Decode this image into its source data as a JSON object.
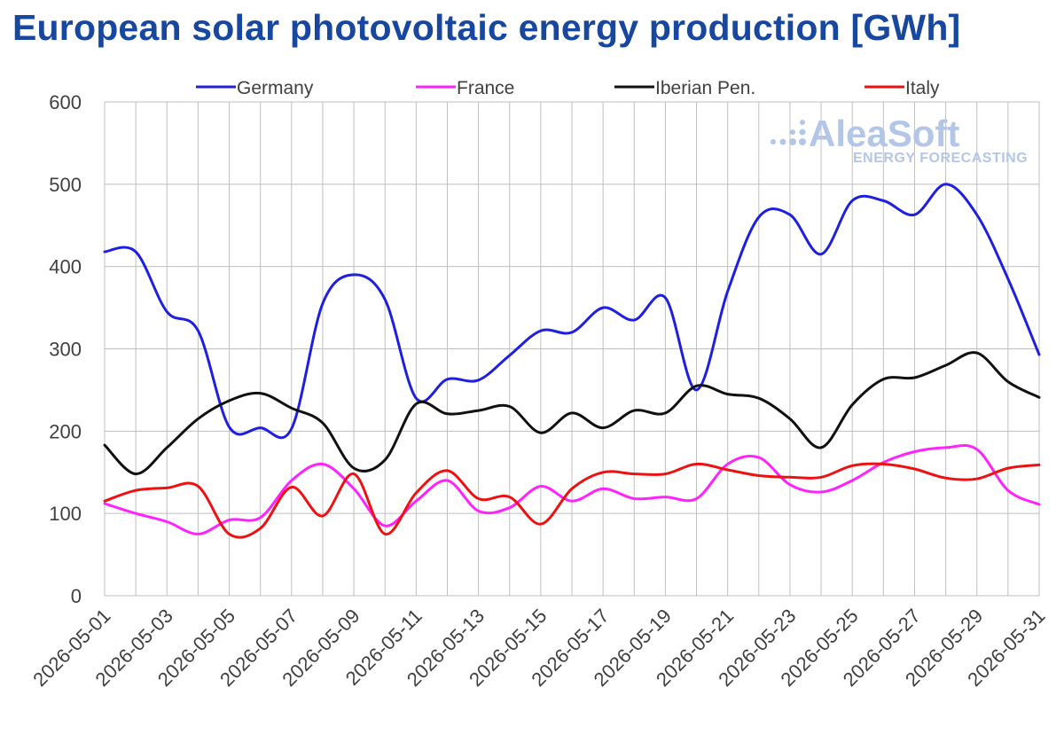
{
  "title": "European solar photovoltaic energy production [GWh]",
  "watermark": {
    "brand": "AleaSoft",
    "tagline": "ENERGY FORECASTING"
  },
  "chart_data": {
    "type": "line",
    "title": "European solar photovoltaic energy production [GWh]",
    "ylim": [
      0,
      600
    ],
    "y_ticks": [
      0,
      100,
      200,
      300,
      400,
      500,
      600
    ],
    "x": [
      "2026-05-01",
      "2026-05-02",
      "2026-05-03",
      "2026-05-04",
      "2026-05-05",
      "2026-05-06",
      "2026-05-07",
      "2026-05-08",
      "2026-05-09",
      "2026-05-10",
      "2026-05-11",
      "2026-05-12",
      "2026-05-13",
      "2026-05-14",
      "2026-05-15",
      "2026-05-16",
      "2026-05-17",
      "2026-05-18",
      "2026-05-19",
      "2026-05-20",
      "2026-05-21",
      "2026-05-22",
      "2026-05-23",
      "2026-05-24",
      "2026-05-25",
      "2026-05-26",
      "2026-05-27",
      "2026-05-28",
      "2026-05-29",
      "2026-05-30",
      "2026-05-31"
    ],
    "x_tick_labels": [
      "2026-05-01",
      "2026-05-03",
      "2026-05-05",
      "2026-05-07",
      "2026-05-09",
      "2026-05-11",
      "2026-05-13",
      "2026-05-15",
      "2026-05-17",
      "2026-05-19",
      "2026-05-21",
      "2026-05-23",
      "2026-05-25",
      "2026-05-27",
      "2026-05-29",
      "2026-05-31"
    ],
    "grid": true,
    "legend_position": "top",
    "series": [
      {
        "name": "Germany",
        "color": "#1f1fe0",
        "values": [
          418,
          418,
          345,
          322,
          205,
          204,
          203,
          355,
          390,
          360,
          240,
          263,
          262,
          292,
          322,
          320,
          350,
          335,
          362,
          250,
          370,
          460,
          463,
          415,
          480,
          480,
          463,
          500,
          463,
          385,
          293
        ]
      },
      {
        "name": "France",
        "color": "#ff22ff",
        "values": [
          112,
          100,
          90,
          75,
          92,
          95,
          140,
          160,
          130,
          85,
          115,
          140,
          103,
          107,
          133,
          115,
          130,
          118,
          120,
          118,
          160,
          168,
          135,
          126,
          140,
          162,
          175,
          180,
          178,
          128,
          111
        ]
      },
      {
        "name": "Iberian Pen.",
        "color": "#111111",
        "values": [
          183,
          148,
          180,
          215,
          237,
          246,
          228,
          210,
          155,
          165,
          233,
          221,
          225,
          230,
          198,
          222,
          204,
          225,
          222,
          255,
          245,
          240,
          215,
          180,
          232,
          263,
          265,
          280,
          295,
          260,
          241
        ]
      },
      {
        "name": "Italy",
        "color": "#ee1111",
        "values": [
          115,
          128,
          131,
          133,
          75,
          82,
          132,
          97,
          148,
          75,
          125,
          152,
          118,
          120,
          87,
          130,
          150,
          148,
          148,
          160,
          153,
          146,
          144,
          144,
          158,
          160,
          154,
          143,
          142,
          155,
          159
        ]
      }
    ]
  }
}
